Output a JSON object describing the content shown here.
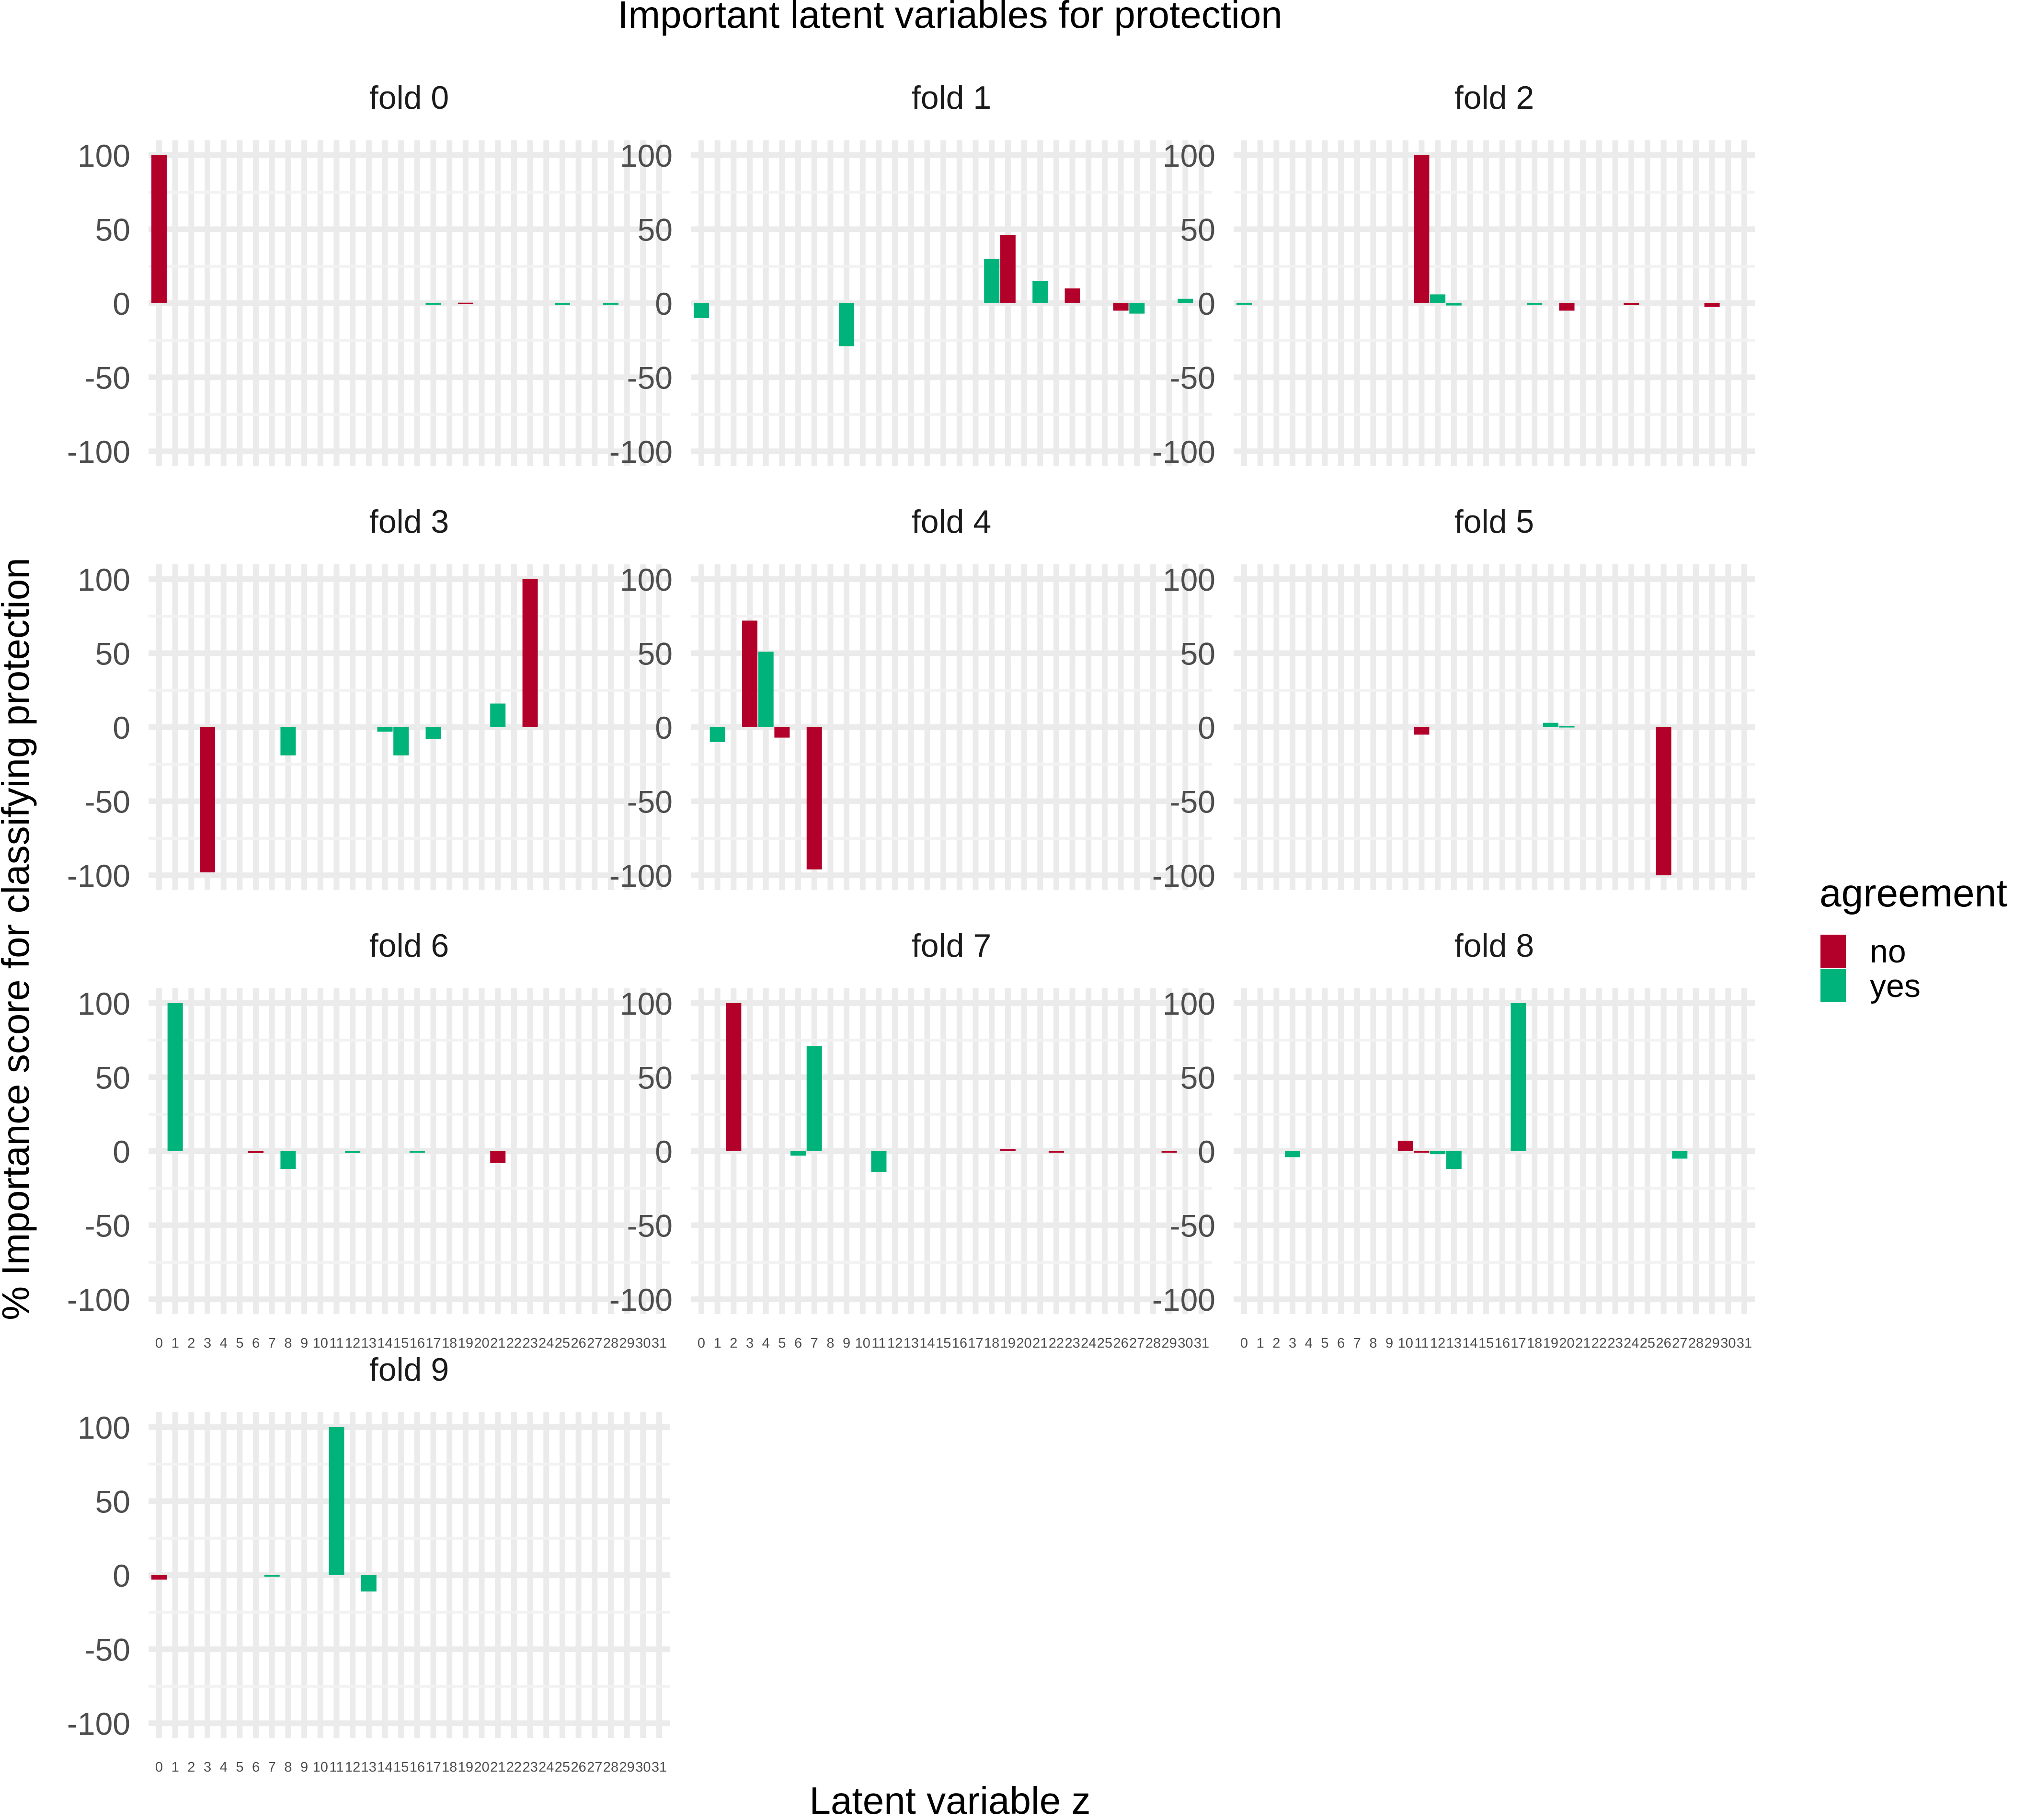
{
  "chart_data": {
    "type": "bar",
    "title": "Important latent variables for protection",
    "xlabel": "Latent variable z",
    "ylabel": "% Importance score for classifying protection",
    "ylim": [
      -110,
      110
    ],
    "yticks": [
      100,
      50,
      0,
      -50,
      -100
    ],
    "categories": [
      "0",
      "1",
      "2",
      "3",
      "4",
      "5",
      "6",
      "7",
      "8",
      "9",
      "10",
      "11",
      "12",
      "13",
      "14",
      "15",
      "16",
      "17",
      "18",
      "19",
      "20",
      "21",
      "22",
      "23",
      "24",
      "25",
      "26",
      "27",
      "28",
      "29",
      "30",
      "31"
    ],
    "legend": {
      "title": "agreement",
      "position": "right",
      "entries": [
        {
          "label": "no",
          "color": "#B2002A"
        },
        {
          "label": "yes",
          "color": "#00B37A"
        }
      ]
    },
    "panels": [
      {
        "title": "fold 0",
        "bars": [
          {
            "x": 0,
            "value": 100,
            "agreement": "no"
          },
          {
            "x": 17,
            "value": -0.8,
            "agreement": "yes"
          },
          {
            "x": 19,
            "value": 0.4,
            "agreement": "no"
          },
          {
            "x": 25,
            "value": -1.2,
            "agreement": "yes"
          },
          {
            "x": 28,
            "value": -0.6,
            "agreement": "yes"
          }
        ]
      },
      {
        "title": "fold 1",
        "bars": [
          {
            "x": 0,
            "value": -10,
            "agreement": "yes"
          },
          {
            "x": 9,
            "value": -29,
            "agreement": "yes"
          },
          {
            "x": 18,
            "value": 30,
            "agreement": "yes"
          },
          {
            "x": 19,
            "value": 46,
            "agreement": "no"
          },
          {
            "x": 21,
            "value": 15,
            "agreement": "yes"
          },
          {
            "x": 23,
            "value": 10,
            "agreement": "no"
          },
          {
            "x": 26,
            "value": -5,
            "agreement": "no"
          },
          {
            "x": 27,
            "value": -7,
            "agreement": "yes"
          },
          {
            "x": 30,
            "value": 3,
            "agreement": "yes"
          }
        ]
      },
      {
        "title": "fold 2",
        "bars": [
          {
            "x": 0,
            "value": -0.8,
            "agreement": "yes"
          },
          {
            "x": 11,
            "value": 100,
            "agreement": "no"
          },
          {
            "x": 12,
            "value": 6,
            "agreement": "yes"
          },
          {
            "x": 13,
            "value": -1.5,
            "agreement": "yes"
          },
          {
            "x": 18,
            "value": -0.5,
            "agreement": "yes"
          },
          {
            "x": 20,
            "value": -5,
            "agreement": "no"
          },
          {
            "x": 24,
            "value": -1.2,
            "agreement": "no"
          },
          {
            "x": 29,
            "value": -2.5,
            "agreement": "no"
          }
        ]
      },
      {
        "title": "fold 3",
        "bars": [
          {
            "x": 3,
            "value": -98,
            "agreement": "no"
          },
          {
            "x": 8,
            "value": -19,
            "agreement": "yes"
          },
          {
            "x": 14,
            "value": -3,
            "agreement": "yes"
          },
          {
            "x": 15,
            "value": -19,
            "agreement": "yes"
          },
          {
            "x": 17,
            "value": -8,
            "agreement": "yes"
          },
          {
            "x": 21,
            "value": 16,
            "agreement": "yes"
          },
          {
            "x": 23,
            "value": 100,
            "agreement": "no"
          }
        ]
      },
      {
        "title": "fold 4",
        "bars": [
          {
            "x": 1,
            "value": -10,
            "agreement": "yes"
          },
          {
            "x": 3,
            "value": 72,
            "agreement": "no"
          },
          {
            "x": 4,
            "value": 51,
            "agreement": "yes"
          },
          {
            "x": 5,
            "value": -7,
            "agreement": "no"
          },
          {
            "x": 7,
            "value": -96,
            "agreement": "no"
          }
        ]
      },
      {
        "title": "fold 5",
        "bars": [
          {
            "x": 11,
            "value": -5,
            "agreement": "no"
          },
          {
            "x": 19,
            "value": 3,
            "agreement": "yes"
          },
          {
            "x": 20,
            "value": 0.8,
            "agreement": "yes"
          },
          {
            "x": 26,
            "value": -100,
            "agreement": "no"
          }
        ]
      },
      {
        "title": "fold 6",
        "bars": [
          {
            "x": 1,
            "value": 100,
            "agreement": "yes"
          },
          {
            "x": 6,
            "value": -1.2,
            "agreement": "no"
          },
          {
            "x": 8,
            "value": -12,
            "agreement": "yes"
          },
          {
            "x": 12,
            "value": -1.2,
            "agreement": "yes"
          },
          {
            "x": 16,
            "value": -1,
            "agreement": "yes"
          },
          {
            "x": 21,
            "value": -8,
            "agreement": "no"
          }
        ]
      },
      {
        "title": "fold 7",
        "bars": [
          {
            "x": 2,
            "value": 100,
            "agreement": "no"
          },
          {
            "x": 6,
            "value": -3,
            "agreement": "yes"
          },
          {
            "x": 7,
            "value": 71,
            "agreement": "yes"
          },
          {
            "x": 11,
            "value": -14,
            "agreement": "yes"
          },
          {
            "x": 19,
            "value": 1.5,
            "agreement": "no"
          },
          {
            "x": 22,
            "value": -0.6,
            "agreement": "no"
          },
          {
            "x": 29,
            "value": -0.8,
            "agreement": "no"
          }
        ]
      },
      {
        "title": "fold 8",
        "bars": [
          {
            "x": 3,
            "value": -4,
            "agreement": "yes"
          },
          {
            "x": 10,
            "value": 7,
            "agreement": "no"
          },
          {
            "x": 11,
            "value": -0.6,
            "agreement": "no"
          },
          {
            "x": 12,
            "value": -2,
            "agreement": "yes"
          },
          {
            "x": 13,
            "value": -12,
            "agreement": "yes"
          },
          {
            "x": 17,
            "value": 100,
            "agreement": "yes"
          },
          {
            "x": 27,
            "value": -5,
            "agreement": "yes"
          }
        ]
      },
      {
        "title": "fold 9",
        "bars": [
          {
            "x": 0,
            "value": -3,
            "agreement": "no"
          },
          {
            "x": 7,
            "value": -0.8,
            "agreement": "yes"
          },
          {
            "x": 11,
            "value": 100,
            "agreement": "yes"
          },
          {
            "x": 13,
            "value": -11,
            "agreement": "yes"
          }
        ]
      }
    ]
  }
}
